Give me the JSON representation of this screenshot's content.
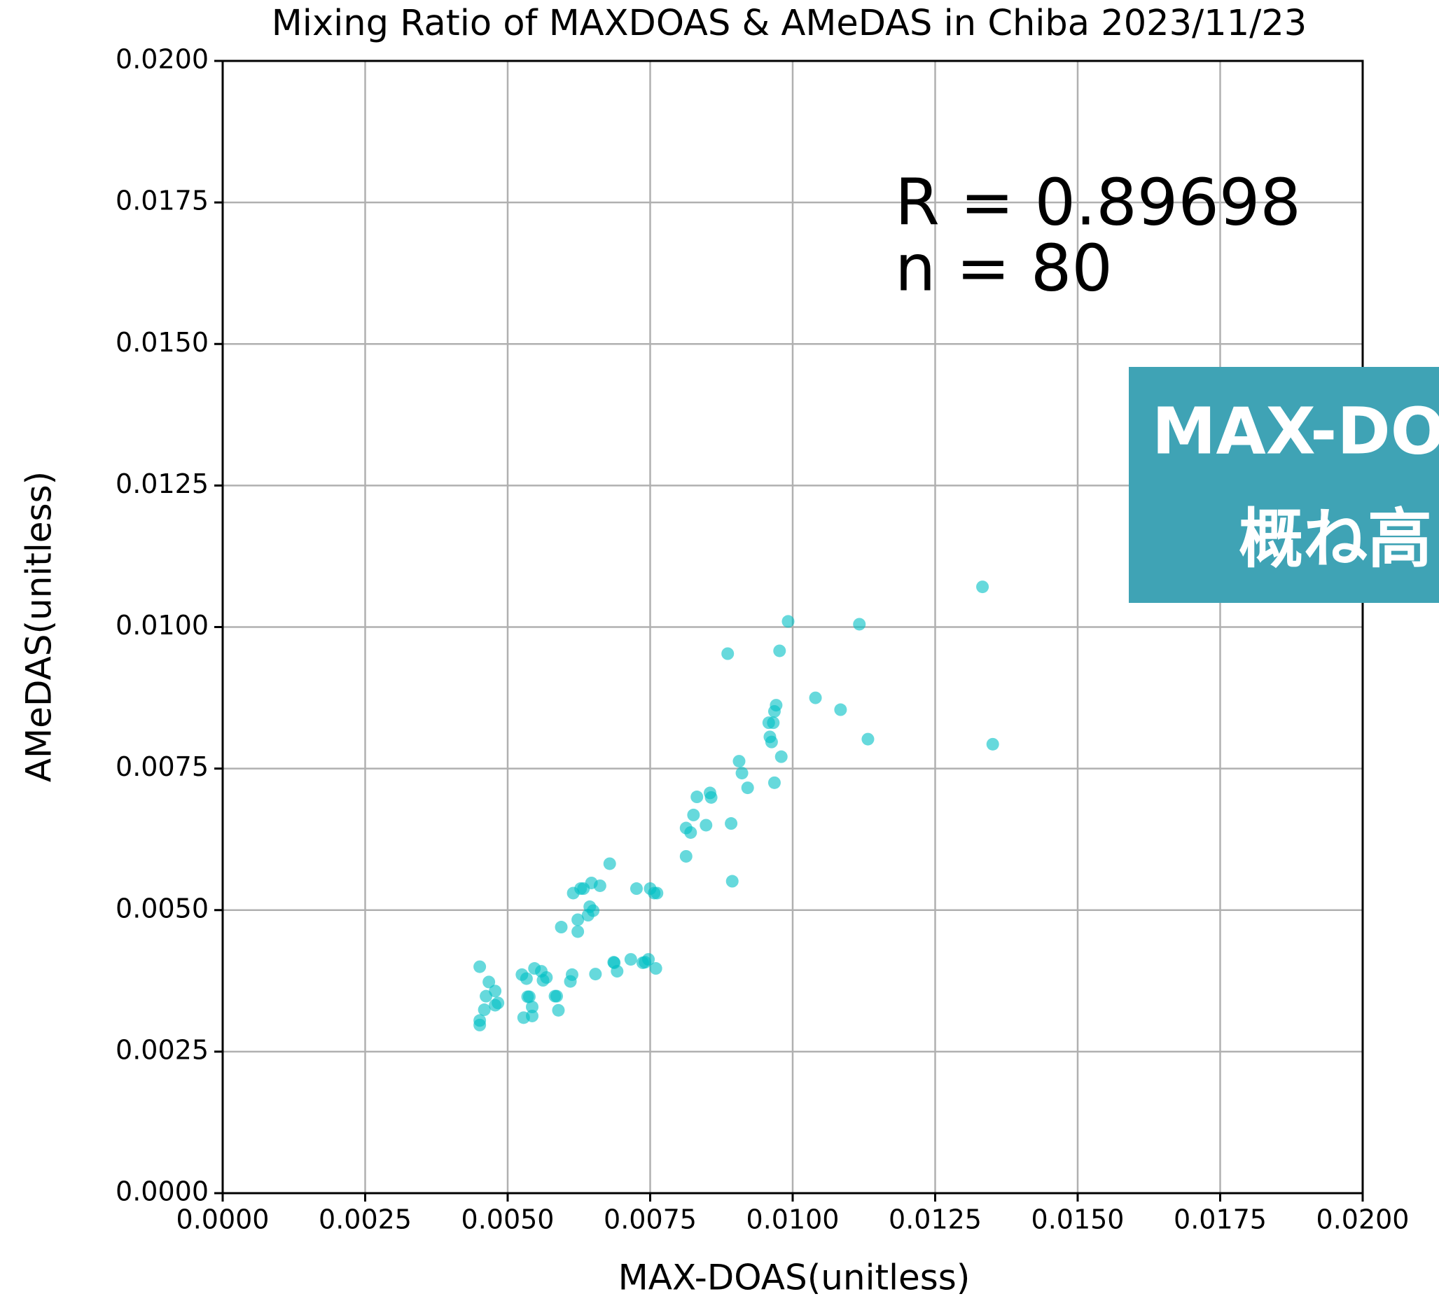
{
  "chart_data": {
    "type": "scatter",
    "title": "Mixing Ratio of MAXDOAS & AMeDAS in Chiba 2023/11/23",
    "xlabel": "MAX-DOAS(unitless)",
    "ylabel": "AMeDAS(unitless)",
    "annotations": [
      "R = 0.89698",
      "n = 80"
    ],
    "callout": [
      "MAX-DO",
      "概ね高"
    ],
    "color": "#00bfc4",
    "grid": true,
    "xlim": [
      0,
      0.02
    ],
    "ylim": [
      0,
      0.02
    ],
    "xticks": [
      {
        "value": 0,
        "label": "0.0000"
      },
      {
        "value": 0.0025,
        "label": "0.0025"
      },
      {
        "value": 0.005,
        "label": "0.0050"
      },
      {
        "value": 0.0075,
        "label": "0.0075"
      },
      {
        "value": 0.01,
        "label": "0.0100"
      },
      {
        "value": 0.0125,
        "label": "0.0125"
      },
      {
        "value": 0.015,
        "label": "0.0150"
      },
      {
        "value": 0.0175,
        "label": "0.0175"
      },
      {
        "value": 0.02,
        "label": "0.0200"
      }
    ],
    "yticks": [
      {
        "value": 0,
        "label": "0.0000"
      },
      {
        "value": 0.0025,
        "label": "0.0025"
      },
      {
        "value": 0.005,
        "label": "0.0050"
      },
      {
        "value": 0.0075,
        "label": "0.0075"
      },
      {
        "value": 0.01,
        "label": "0.0100"
      },
      {
        "value": 0.0125,
        "label": "0.0125"
      },
      {
        "value": 0.015,
        "label": "0.0150"
      },
      {
        "value": 0.0175,
        "label": "0.0175"
      },
      {
        "value": 0.02,
        "label": "0.0200"
      }
    ],
    "x": [
      0.00451,
      0.00451,
      0.00451,
      0.00459,
      0.00462,
      0.00478,
      0.00478,
      0.00483,
      0.00525,
      0.00528,
      0.00533,
      0.00535,
      0.00538,
      0.00543,
      0.00543,
      0.00547,
      0.00559,
      0.00568,
      0.00583,
      0.00586,
      0.00589,
      0.00594,
      0.0061,
      0.00613,
      0.00615,
      0.00623,
      0.00623,
      0.00628,
      0.00633,
      0.00641,
      0.00644,
      0.00647,
      0.00654,
      0.00662,
      0.00679,
      0.00686,
      0.00687,
      0.00692,
      0.00716,
      0.00726,
      0.00741,
      0.00747,
      0.0075,
      0.00757,
      0.0076,
      0.00762,
      0.00813,
      0.00813,
      0.00821,
      0.00826,
      0.00848,
      0.00855,
      0.00857,
      0.00886,
      0.00892,
      0.00894,
      0.00906,
      0.00911,
      0.00921,
      0.00958,
      0.00963,
      0.00966,
      0.00968,
      0.00968,
      0.00971,
      0.00977,
      0.0098,
      0.00992,
      0.0104,
      0.01084,
      0.01117,
      0.01132,
      0.01333,
      0.01351,
      0.0096,
      0.00562,
      0.00467,
      0.00737,
      0.0065,
      0.00832
    ],
    "values": [
      0.004,
      0.00297,
      0.00305,
      0.00324,
      0.00348,
      0.00357,
      0.00332,
      0.00336,
      0.00386,
      0.0031,
      0.00379,
      0.00347,
      0.00347,
      0.00313,
      0.00329,
      0.00397,
      0.00392,
      0.00381,
      0.00348,
      0.00348,
      0.00323,
      0.0047,
      0.00374,
      0.00386,
      0.0053,
      0.00462,
      0.00483,
      0.00538,
      0.00538,
      0.00491,
      0.00506,
      0.00548,
      0.00387,
      0.00543,
      0.00582,
      0.00408,
      0.00407,
      0.00392,
      0.00413,
      0.00538,
      0.00408,
      0.00413,
      0.00538,
      0.0053,
      0.00397,
      0.0053,
      0.00595,
      0.00645,
      0.00637,
      0.00668,
      0.0065,
      0.00707,
      0.00699,
      0.00953,
      0.00653,
      0.00551,
      0.00763,
      0.00742,
      0.00716,
      0.00831,
      0.00797,
      0.00831,
      0.00851,
      0.00725,
      0.00862,
      0.00958,
      0.00771,
      0.0101,
      0.00875,
      0.00854,
      0.01005,
      0.00802,
      0.01071,
      0.00793,
      0.00806,
      0.00376,
      0.00373,
      0.00407,
      0.00499,
      0.007
    ]
  }
}
